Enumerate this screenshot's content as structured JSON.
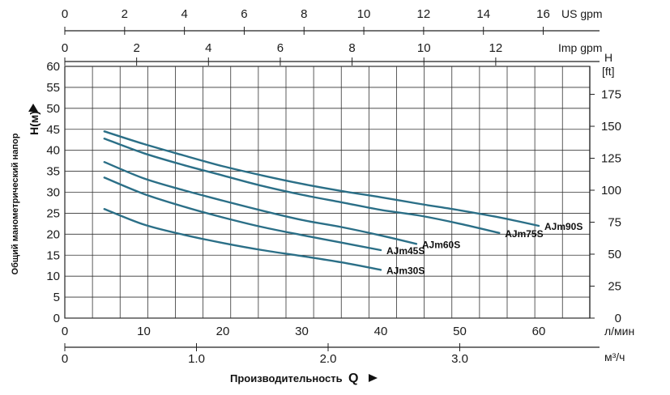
{
  "chart_data": {
    "type": "line",
    "x_unit": "л/мин",
    "y_unit_left": "H(м)",
    "ylabel_left": "Общий манометрический напор",
    "ylabel_right_top": "H",
    "ylabel_right_bottom": "[ft]",
    "xlabel": "Производительность",
    "xlabel_q": "Q",
    "xlim": [
      0,
      66
    ],
    "ylim": [
      0,
      60
    ],
    "grid": true,
    "x_ticks": [
      0,
      10,
      20,
      30,
      40,
      50,
      60
    ],
    "y_ticks": [
      0,
      5,
      10,
      15,
      20,
      25,
      30,
      35,
      40,
      45,
      50,
      55,
      60
    ],
    "right_axis": {
      "unit": "ft",
      "ticks": [
        0,
        25,
        50,
        75,
        100,
        125,
        150,
        175
      ]
    },
    "m3h_axis": {
      "unit": "м³/ч",
      "ticks": [
        "0",
        "1.0",
        "2.0",
        "3.0"
      ],
      "values": [
        0,
        1,
        2,
        3
      ]
    },
    "us_gpm_axis": {
      "unit": "US gpm",
      "ticks": [
        0,
        2,
        4,
        6,
        8,
        10,
        12,
        14,
        16
      ]
    },
    "imp_gpm_axis": {
      "unit": "Imp gpm",
      "ticks": [
        0,
        2,
        4,
        6,
        8,
        10,
        12
      ]
    },
    "series": [
      {
        "name": "AJm90S",
        "x": [
          5,
          10,
          15,
          20,
          25,
          30,
          35,
          40,
          45,
          50,
          55,
          60
        ],
        "values": [
          44.5,
          41.5,
          38.8,
          36.2,
          34.0,
          32.0,
          30.3,
          28.8,
          27.2,
          25.7,
          24.0,
          22.0
        ]
      },
      {
        "name": "AJm75S",
        "x": [
          5,
          10,
          15,
          20,
          25,
          30,
          35,
          40,
          45,
          50,
          55
        ],
        "values": [
          42.8,
          39.3,
          36.5,
          34.0,
          31.5,
          29.4,
          27.6,
          25.8,
          24.4,
          22.5,
          20.3
        ]
      },
      {
        "name": "AJm60S",
        "x": [
          5,
          10,
          15,
          20,
          25,
          30,
          35,
          40,
          44.5
        ],
        "values": [
          37.2,
          33.3,
          30.5,
          28.0,
          25.6,
          23.4,
          21.7,
          19.7,
          17.7
        ]
      },
      {
        "name": "AJm45S",
        "x": [
          5,
          10,
          15,
          20,
          25,
          30,
          35,
          40
        ],
        "values": [
          33.5,
          29.6,
          26.6,
          24.0,
          21.7,
          19.8,
          18.0,
          16.2
        ]
      },
      {
        "name": "AJm30S",
        "x": [
          5,
          10,
          15,
          20,
          25,
          30,
          35,
          40
        ],
        "values": [
          26.0,
          22.3,
          19.9,
          17.9,
          16.2,
          14.8,
          13.3,
          11.5
        ]
      }
    ]
  }
}
